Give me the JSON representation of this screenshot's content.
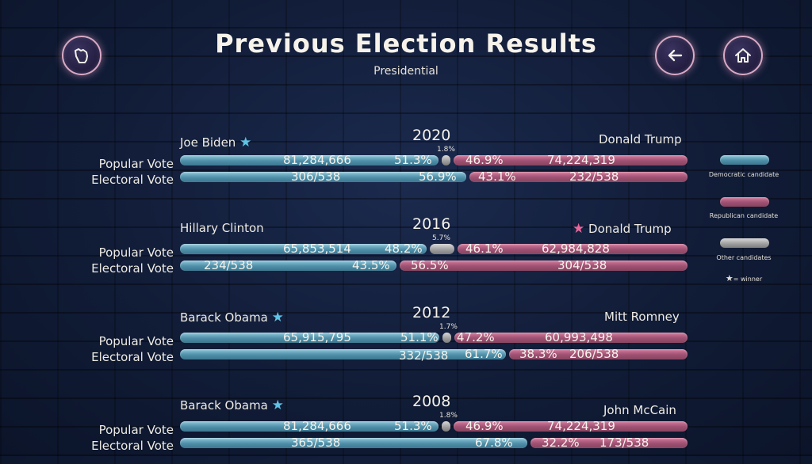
{
  "header": {
    "title": "Previous Election Results",
    "subtitle": "Presidential",
    "state_icon": "wisconsin-state-icon",
    "back_icon": "arrow-left-icon",
    "home_icon": "home-icon"
  },
  "row_labels": {
    "popular": "Popular Vote",
    "electoral": "Electoral Vote"
  },
  "elections": [
    {
      "year": "2020",
      "dem_name": "Joe Biden",
      "rep_name": "Donald Trump",
      "winner": "dem",
      "popular": {
        "dem_votes": "81,284,666",
        "dem_pct": "51.3%",
        "other_pct": "1.8%",
        "rep_pct": "46.9%",
        "rep_votes": "74,224,319"
      },
      "electoral": {
        "dem_ev": "306/538",
        "dem_pct": "56.9%",
        "rep_pct": "43.1%",
        "rep_ev": "232/538"
      }
    },
    {
      "year": "2016",
      "dem_name": "Hillary Clinton",
      "rep_name": "Donald Trump",
      "winner": "rep",
      "popular": {
        "dem_votes": "65,853,514",
        "dem_pct": "48.2%",
        "other_pct": "5.7%",
        "rep_pct": "46.1%",
        "rep_votes": "62,984,828"
      },
      "electoral": {
        "dem_ev": "234/538",
        "dem_pct": "43.5%",
        "rep_pct": "56.5%",
        "rep_ev": "304/538"
      }
    },
    {
      "year": "2012",
      "dem_name": "Barack Obama",
      "rep_name": "Mitt Romney",
      "winner": "dem",
      "popular": {
        "dem_votes": "65,915,795",
        "dem_pct": "51.1%",
        "other_pct": "1.7%",
        "rep_pct": "47.2%",
        "rep_votes": "60,993,498"
      },
      "electoral": {
        "dem_ev": "332/538",
        "dem_pct": "61.7%",
        "rep_pct": "38.3%",
        "rep_ev": "206/538"
      }
    },
    {
      "year": "2008",
      "dem_name": "Barack Obama",
      "rep_name": "John McCain",
      "winner": "dem",
      "popular": {
        "dem_votes": "81,284,666",
        "dem_pct": "51.3%",
        "other_pct": "1.8%",
        "rep_pct": "46.9%",
        "rep_votes": "74,224,319"
      },
      "electoral": {
        "dem_ev": "365/538",
        "dem_pct": "67.8%",
        "rep_pct": "32.2%",
        "rep_ev": "173/538"
      }
    }
  ],
  "legend": {
    "dem": "Democratic candidate",
    "rep": "Republican candidate",
    "other": "Other candidates",
    "winner": "= winner"
  },
  "colors": {
    "dem": "#5b9db6",
    "rep": "#b15c80",
    "other": "#a6a6a6",
    "star_dem": "#5fc3e6",
    "star_rep": "#e8679a"
  }
}
